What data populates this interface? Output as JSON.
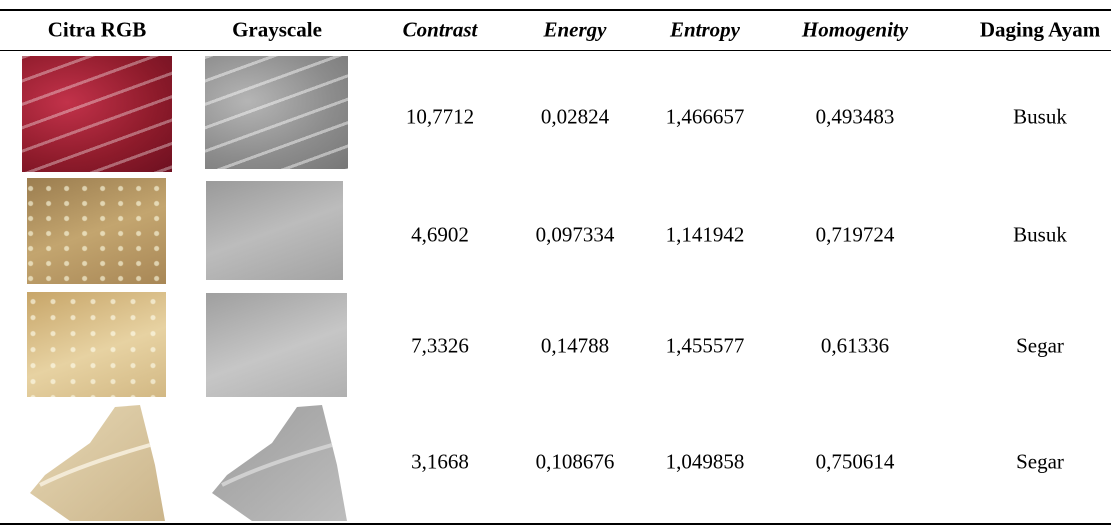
{
  "table": {
    "headers": [
      "Citra RGB",
      "Grayscale",
      "Contrast",
      "Energy",
      "Entropy",
      "Homogenity",
      "Daging Ayam"
    ],
    "rows": [
      [
        "10,7712",
        "0,02824",
        "1,466657",
        "0,493483",
        "Busuk"
      ],
      [
        "4,6902",
        "0,097334",
        "1,141942",
        "0,719724",
        "Busuk"
      ],
      [
        "7,3326",
        "0,14788",
        "1,455577",
        "0,61336",
        "Segar"
      ],
      [
        "3,1668",
        "0,108676",
        "1,049858",
        "0,750614",
        "Segar"
      ]
    ]
  }
}
